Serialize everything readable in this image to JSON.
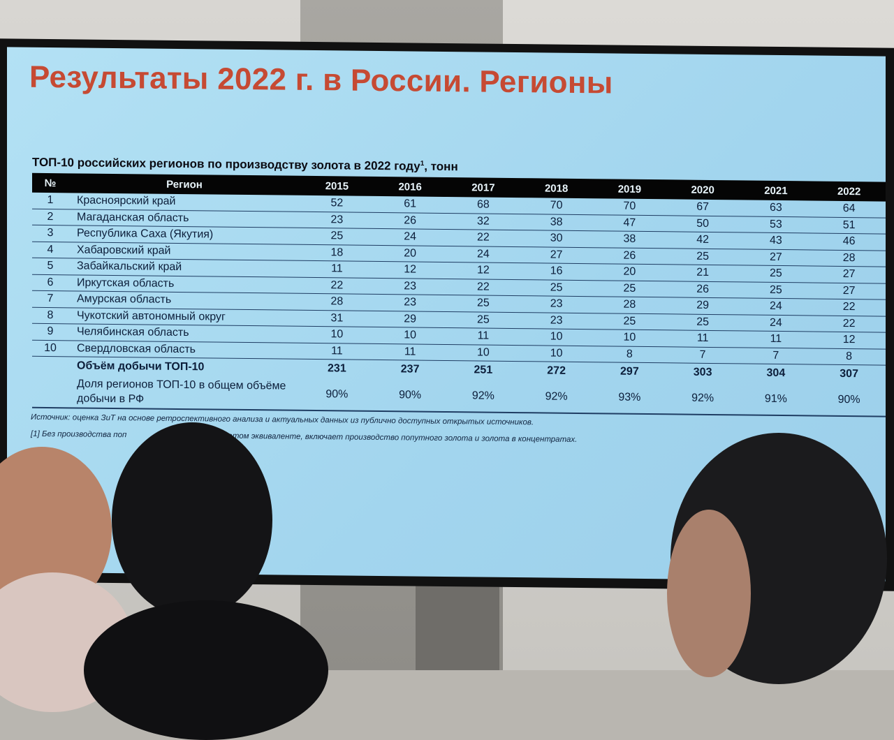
{
  "slide": {
    "title": "Результаты 2022 г. в России. Регионы",
    "subtitle": "ТОП-10 российских регионов по производству золота в 2022 году",
    "subtitle_sup": "1",
    "subtitle_unit": ", тонн",
    "colors": {
      "title": "#c64a33",
      "background": "#a8daf0",
      "header": "#050505"
    }
  },
  "table": {
    "headers": [
      "№",
      "Регион",
      "2015",
      "2016",
      "2017",
      "2018",
      "2019",
      "2020",
      "2021",
      "2022"
    ],
    "rows": [
      {
        "n": "1",
        "region": "Красноярский край",
        "values": [
          "52",
          "61",
          "68",
          "70",
          "70",
          "67",
          "63",
          "64"
        ]
      },
      {
        "n": "2",
        "region": "Магаданская область",
        "values": [
          "23",
          "26",
          "32",
          "38",
          "47",
          "50",
          "53",
          "51"
        ]
      },
      {
        "n": "3",
        "region": "Республика Саха (Якутия)",
        "values": [
          "25",
          "24",
          "22",
          "30",
          "38",
          "42",
          "43",
          "46"
        ]
      },
      {
        "n": "4",
        "region": "Хабаровский край",
        "values": [
          "18",
          "20",
          "24",
          "27",
          "26",
          "25",
          "27",
          "28"
        ]
      },
      {
        "n": "5",
        "region": "Забайкальский край",
        "values": [
          "11",
          "12",
          "12",
          "16",
          "20",
          "21",
          "25",
          "27"
        ]
      },
      {
        "n": "6",
        "region": "Иркутская область",
        "values": [
          "22",
          "23",
          "22",
          "25",
          "25",
          "26",
          "25",
          "27"
        ]
      },
      {
        "n": "7",
        "region": "Амурская область",
        "values": [
          "28",
          "23",
          "25",
          "23",
          "28",
          "29",
          "24",
          "22"
        ]
      },
      {
        "n": "8",
        "region": "Чукотский автономный округ",
        "values": [
          "31",
          "29",
          "25",
          "23",
          "25",
          "25",
          "24",
          "22"
        ]
      },
      {
        "n": "9",
        "region": "Челябинская область",
        "values": [
          "10",
          "10",
          "11",
          "10",
          "10",
          "11",
          "11",
          "12"
        ]
      },
      {
        "n": "10",
        "region": "Свердловская область",
        "values": [
          "11",
          "11",
          "10",
          "10",
          "8",
          "7",
          "7",
          "8"
        ]
      }
    ],
    "total": {
      "label": "Объём добычи ТОП-10",
      "values": [
        "231",
        "237",
        "251",
        "272",
        "297",
        "303",
        "304",
        "307"
      ]
    },
    "share": {
      "label": "Доля регионов ТОП-10 в общем объёме добычи в РФ",
      "values": [
        "90%",
        "90%",
        "92%",
        "92%",
        "93%",
        "92%",
        "91%",
        "90%"
      ]
    }
  },
  "source": "Источник: оценка ЗиТ на основе ретроспективного анализа и актуальных данных из публично доступных открытых источников.",
  "footnote": {
    "part1": "[1] Без производства поп",
    "part2": "в золотом эквиваленте, включает производство попутного золота и золота в концентратах."
  }
}
